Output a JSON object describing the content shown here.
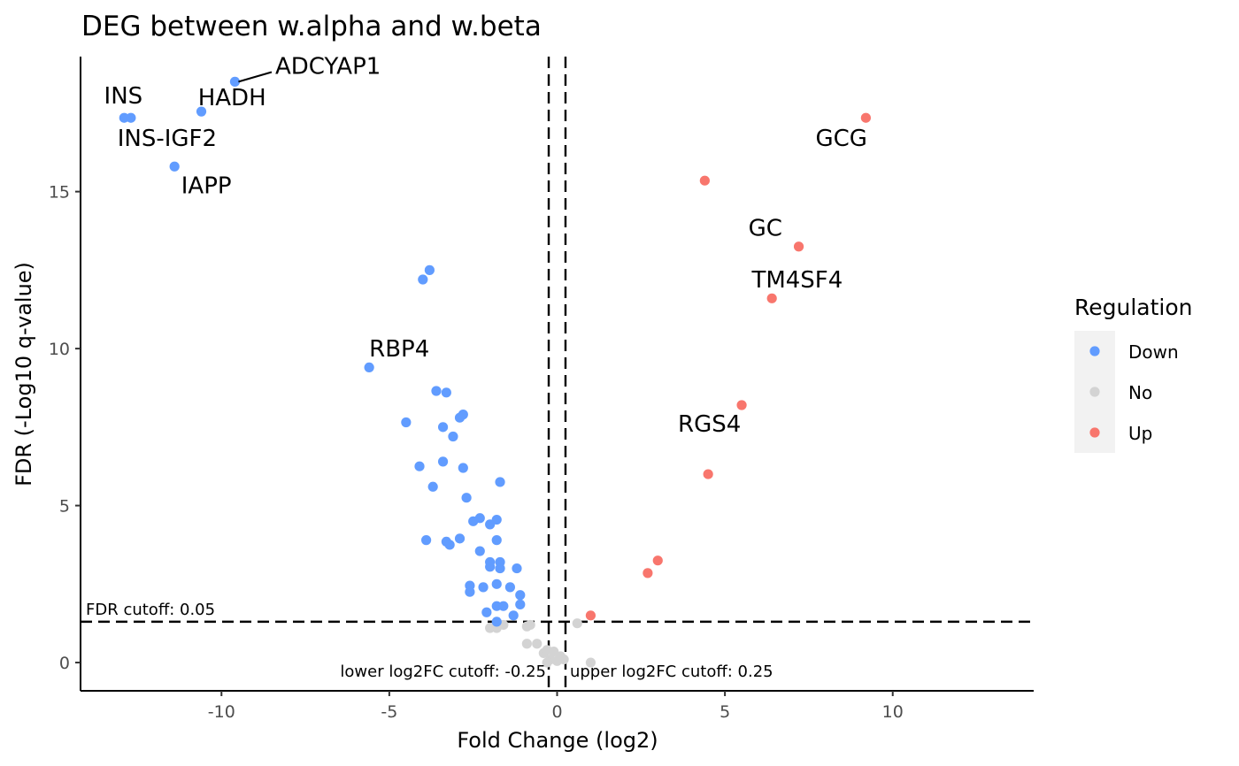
{
  "chart_data": {
    "type": "scatter",
    "title": "DEG between w.alpha and w.beta",
    "xlabel": "Fold Change (log2)",
    "ylabel": "FDR (-Log10 q-value)",
    "xlim": [
      -14.2,
      14.2
    ],
    "ylim": [
      -0.9,
      19.3
    ],
    "x_ticks": [
      -10,
      -5,
      0,
      5,
      10
    ],
    "x_tick_labels": [
      "-10",
      "-5",
      "0",
      "5",
      "10"
    ],
    "y_ticks": [
      0,
      5,
      10,
      15
    ],
    "y_tick_labels": [
      "0",
      "5",
      "10",
      "15"
    ],
    "grid": false,
    "legend": {
      "title": "Regulation",
      "position": "right"
    },
    "colors": {
      "Down": "#619CFF",
      "No": "#D3D3D3",
      "Up": "#F8766D"
    },
    "series": [
      {
        "name": "Down",
        "points": [
          [
            -12.9,
            17.35
          ],
          [
            -12.7,
            17.35
          ],
          [
            -10.6,
            17.55
          ],
          [
            -9.6,
            18.5
          ],
          [
            -11.4,
            15.8
          ],
          [
            -3.8,
            12.5
          ],
          [
            -4.0,
            12.2
          ],
          [
            -5.6,
            9.4
          ],
          [
            -3.6,
            8.65
          ],
          [
            -3.3,
            8.6
          ],
          [
            -2.8,
            7.9
          ],
          [
            -2.9,
            7.8
          ],
          [
            -4.5,
            7.65
          ],
          [
            -3.4,
            7.5
          ],
          [
            -3.1,
            7.2
          ],
          [
            -4.1,
            6.25
          ],
          [
            -3.4,
            6.4
          ],
          [
            -2.8,
            6.2
          ],
          [
            -1.7,
            5.75
          ],
          [
            -3.7,
            5.6
          ],
          [
            -2.7,
            5.25
          ],
          [
            -2.3,
            4.6
          ],
          [
            -2.5,
            4.5
          ],
          [
            -2.0,
            4.4
          ],
          [
            -1.8,
            4.55
          ],
          [
            -3.9,
            3.9
          ],
          [
            -3.3,
            3.85
          ],
          [
            -3.2,
            3.75
          ],
          [
            -2.9,
            3.95
          ],
          [
            -1.8,
            3.9
          ],
          [
            -2.3,
            3.55
          ],
          [
            -2.0,
            3.2
          ],
          [
            -1.7,
            3.2
          ],
          [
            -2.0,
            3.05
          ],
          [
            -1.7,
            3.0
          ],
          [
            -1.2,
            3.0
          ],
          [
            -2.6,
            2.45
          ],
          [
            -2.2,
            2.4
          ],
          [
            -1.8,
            2.5
          ],
          [
            -1.4,
            2.4
          ],
          [
            -2.6,
            2.25
          ],
          [
            -1.1,
            2.15
          ],
          [
            -1.8,
            1.8
          ],
          [
            -1.6,
            1.8
          ],
          [
            -1.1,
            1.85
          ],
          [
            -2.1,
            1.6
          ],
          [
            -1.3,
            1.5
          ],
          [
            -1.8,
            1.3
          ]
        ]
      },
      {
        "name": "No",
        "points": [
          [
            -2.0,
            1.1
          ],
          [
            -1.8,
            1.1
          ],
          [
            -1.6,
            1.2
          ],
          [
            -0.9,
            1.15
          ],
          [
            -0.8,
            1.2
          ],
          [
            0.6,
            1.25
          ],
          [
            -0.9,
            0.6
          ],
          [
            -0.6,
            0.6
          ],
          [
            -0.4,
            0.3
          ],
          [
            -0.3,
            0.4
          ],
          [
            -0.2,
            0.1
          ],
          [
            -0.1,
            0.35
          ],
          [
            0.0,
            0.05
          ],
          [
            0.1,
            0.2
          ],
          [
            -0.3,
            0.0
          ],
          [
            0.2,
            0.1
          ],
          [
            1.0,
            0.0
          ]
        ]
      },
      {
        "name": "Up",
        "points": [
          [
            9.2,
            17.35
          ],
          [
            4.4,
            15.35
          ],
          [
            7.2,
            13.25
          ],
          [
            6.4,
            11.6
          ],
          [
            5.5,
            8.2
          ],
          [
            4.5,
            6.0
          ],
          [
            3.0,
            3.25
          ],
          [
            2.7,
            2.85
          ],
          [
            1.0,
            1.5
          ]
        ]
      }
    ],
    "gene_labels": [
      {
        "text": "ADCYAP1",
        "x": -8.4,
        "y": 18.75,
        "point": [
          -9.6,
          18.5
        ]
      },
      {
        "text": "INS",
        "x": -13.5,
        "y": 17.8
      },
      {
        "text": "HADH",
        "x": -10.7,
        "y": 17.75
      },
      {
        "text": "INS-IGF2",
        "x": -13.1,
        "y": 16.45
      },
      {
        "text": "IAPP",
        "x": -11.2,
        "y": 14.95
      },
      {
        "text": "GCG",
        "x": 7.7,
        "y": 16.45
      },
      {
        "text": "GC",
        "x": 5.7,
        "y": 13.6
      },
      {
        "text": "TM4SF4",
        "x": 5.8,
        "y": 11.95
      },
      {
        "text": "RBP4",
        "x": -5.6,
        "y": 9.75
      },
      {
        "text": "RGS4",
        "x": 3.6,
        "y": 7.35
      }
    ],
    "cutoffs": {
      "fdr_value": 1.30103,
      "fdr_label": "FDR cutoff: 0.05",
      "lower_fc_value": -0.25,
      "lower_fc_label": "lower log2FC cutoff: -0.25",
      "upper_fc_value": 0.25,
      "upper_fc_label": "upper log2FC cutoff: 0.25"
    }
  }
}
